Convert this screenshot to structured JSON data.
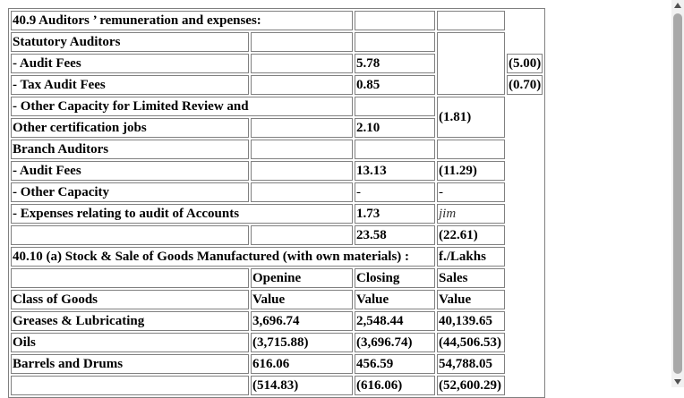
{
  "rows": [
    {
      "cells": [
        {
          "text": "40.9 Auditors ’ remuneration and expenses:",
          "colspan": 2,
          "bold": true
        },
        {
          "text": ""
        },
        {
          "text": ""
        }
      ]
    },
    {
      "cells": [
        {
          "text": "Statutory Auditors",
          "bold": true
        },
        {
          "text": ""
        },
        {
          "text": ""
        },
        {
          "text": "",
          "rowspan": 3
        }
      ]
    },
    {
      "cells": [
        {
          "text": "- Audit Fees",
          "bold": true
        },
        {
          "text": ""
        },
        {
          "text": "5.78"
        },
        {
          "text": "(5.00)"
        }
      ]
    },
    {
      "cells": [
        {
          "text": "- Tax Audit Fees",
          "bold": true
        },
        {
          "text": ""
        },
        {
          "text": "0.85"
        },
        {
          "text": "(0.70)"
        }
      ]
    },
    {
      "cells": [
        {
          "text": "- Other Capacity for Limited Review and",
          "colspan": 2,
          "bold": true
        },
        {
          "text": ""
        },
        {
          "text": "(1.81)",
          "rowspan": 2
        }
      ]
    },
    {
      "cells": [
        {
          "text": "Other certification jobs",
          "bold": true
        },
        {
          "text": ""
        },
        {
          "text": "2.10"
        }
      ]
    },
    {
      "cells": [
        {
          "text": "Branch Auditors",
          "bold": true
        },
        {
          "text": ""
        },
        {
          "text": ""
        },
        {
          "text": ""
        }
      ]
    },
    {
      "cells": [
        {
          "text": "- Audit Fees",
          "bold": true
        },
        {
          "text": ""
        },
        {
          "text": "13.13"
        },
        {
          "text": "(11.29)"
        }
      ]
    },
    {
      "cells": [
        {
          "text": "- Other Capacity",
          "bold": true
        },
        {
          "text": ""
        },
        {
          "text": "-",
          "plain": true
        },
        {
          "text": "-",
          "plain": true
        }
      ]
    },
    {
      "cells": [
        {
          "text": "- Expenses relating to audit of Accounts",
          "colspan": 2,
          "bold": true
        },
        {
          "text": "1.73"
        },
        {
          "text": "jim",
          "italic": true
        }
      ]
    },
    {
      "cells": [
        {
          "text": ""
        },
        {
          "text": ""
        },
        {
          "text": "23.58"
        },
        {
          "text": "(22.61)"
        }
      ]
    },
    {
      "cells": [
        {
          "text": "40.10 (a) Stock & Sale of Goods Manufactured (with own materials) :",
          "colspan": 3,
          "bold": true
        },
        {
          "text": "f./Lakhs"
        }
      ]
    },
    {
      "cells": [
        {
          "text": ""
        },
        {
          "text": "Openine"
        },
        {
          "text": "Closing"
        },
        {
          "text": "Sales"
        }
      ]
    },
    {
      "cells": [
        {
          "text": "Class of Goods"
        },
        {
          "text": "Value"
        },
        {
          "text": "Value"
        },
        {
          "text": "Value"
        }
      ]
    },
    {
      "cells": [
        {
          "text": "Greases & Lubricating"
        },
        {
          "text": "3,696.74"
        },
        {
          "text": "2,548.44"
        },
        {
          "text": "40,139.65"
        }
      ]
    },
    {
      "cells": [
        {
          "text": "Oils"
        },
        {
          "text": "(3,715.88)"
        },
        {
          "text": "(3,696.74)"
        },
        {
          "text": "(44,506.53)"
        }
      ]
    },
    {
      "cells": [
        {
          "text": "Barrels and Drums"
        },
        {
          "text": "616.06"
        },
        {
          "text": "456.59"
        },
        {
          "text": "54,788.05"
        }
      ]
    },
    {
      "cells": [
        {
          "text": ""
        },
        {
          "text": "(514.83)"
        },
        {
          "text": "(616.06)"
        },
        {
          "text": "(52,600.29)"
        }
      ]
    }
  ]
}
